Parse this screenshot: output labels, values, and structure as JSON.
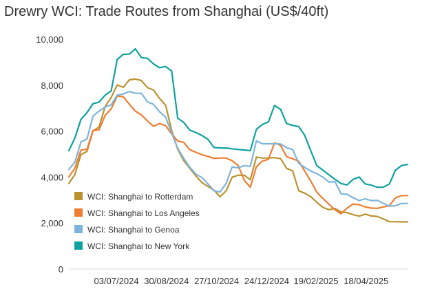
{
  "chart_data": {
    "type": "line",
    "title": "Drewry WCI: Trade Routes from Shanghai (US$/40ft)",
    "xlabel": "",
    "ylabel": "",
    "ylim": [
      0,
      10000
    ],
    "yticks": [
      "0",
      "2,000",
      "4,000",
      "6,000",
      "8,000",
      "10,000"
    ],
    "x_domain": [
      "2024-05-09",
      "2025-06-05"
    ],
    "xticks": [
      {
        "label": "03/07/2024",
        "date": "2024-07-03"
      },
      {
        "label": "30/08/2024",
        "date": "2024-08-30"
      },
      {
        "label": "27/10/2024",
        "date": "2024-10-27"
      },
      {
        "label": "24/12/2024",
        "date": "2024-12-24"
      },
      {
        "label": "19/02/2025",
        "date": "2025-02-19"
      },
      {
        "label": "18/04/2025",
        "date": "2025-04-18"
      }
    ],
    "grid": false,
    "legend_position": "bottom-left",
    "series": [
      {
        "name": "WCI: Shanghai to Rotterdam",
        "color": "#b8922d",
        "points": [
          [
            "2024-05-09",
            3724
          ],
          [
            "2024-05-16",
            4115
          ],
          [
            "2024-05-23",
            4983
          ],
          [
            "2024-05-30",
            5117
          ],
          [
            "2024-06-06",
            6013
          ],
          [
            "2024-06-13",
            6177
          ],
          [
            "2024-06-20",
            7068
          ],
          [
            "2024-06-27",
            7465
          ],
          [
            "2024-07-04",
            8008
          ],
          [
            "2024-07-11",
            7908
          ],
          [
            "2024-07-18",
            8232
          ],
          [
            "2024-07-25",
            8265
          ],
          [
            "2024-08-01",
            8205
          ],
          [
            "2024-08-08",
            7893
          ],
          [
            "2024-08-15",
            7787
          ],
          [
            "2024-08-22",
            7423
          ],
          [
            "2024-08-29",
            7125
          ],
          [
            "2024-09-05",
            6025
          ],
          [
            "2024-09-12",
            5210
          ],
          [
            "2024-09-19",
            4720
          ],
          [
            "2024-09-26",
            4380
          ],
          [
            "2024-10-03",
            4052
          ],
          [
            "2024-10-10",
            3760
          ],
          [
            "2024-10-17",
            3590
          ],
          [
            "2024-10-24",
            3430
          ],
          [
            "2024-10-31",
            3145
          ],
          [
            "2024-11-07",
            3401
          ],
          [
            "2024-11-14",
            3994
          ],
          [
            "2024-11-21",
            4080
          ],
          [
            "2024-11-28",
            4080
          ],
          [
            "2024-12-05",
            3890
          ],
          [
            "2024-12-12",
            4870
          ],
          [
            "2024-12-19",
            4830
          ],
          [
            "2024-12-26",
            4831
          ],
          [
            "2025-01-02",
            4843
          ],
          [
            "2025-01-09",
            4803
          ],
          [
            "2025-01-16",
            4380
          ],
          [
            "2025-01-23",
            4268
          ],
          [
            "2025-01-30",
            3404
          ],
          [
            "2025-02-06",
            3300
          ],
          [
            "2025-02-13",
            3150
          ],
          [
            "2025-02-20",
            2900
          ],
          [
            "2025-02-27",
            2680
          ],
          [
            "2025-03-06",
            2580
          ],
          [
            "2025-03-13",
            2632
          ],
          [
            "2025-03-20",
            2483
          ],
          [
            "2025-03-27",
            2448
          ],
          [
            "2025-04-03",
            2361
          ],
          [
            "2025-04-10",
            2298
          ],
          [
            "2025-04-17",
            2387
          ],
          [
            "2025-04-24",
            2309
          ],
          [
            "2025-05-01",
            2287
          ],
          [
            "2025-05-08",
            2174
          ],
          [
            "2025-05-15",
            2060
          ],
          [
            "2025-05-22",
            2056
          ],
          [
            "2025-05-29",
            2050
          ],
          [
            "2025-06-05",
            2050
          ]
        ]
      },
      {
        "name": "WCI: Shanghai to Los Angeles",
        "color": "#ee7d31",
        "points": [
          [
            "2024-05-09",
            4011
          ],
          [
            "2024-05-16",
            4386
          ],
          [
            "2024-05-23",
            5181
          ],
          [
            "2024-05-30",
            5209
          ],
          [
            "2024-06-06",
            6025
          ],
          [
            "2024-06-13",
            6056
          ],
          [
            "2024-06-20",
            6684
          ],
          [
            "2024-06-27",
            6973
          ],
          [
            "2024-07-04",
            7531
          ],
          [
            "2024-07-11",
            7497
          ],
          [
            "2024-07-18",
            7168
          ],
          [
            "2024-07-25",
            6867
          ],
          [
            "2024-08-01",
            6707
          ],
          [
            "2024-08-08",
            6440
          ],
          [
            "2024-08-15",
            6211
          ],
          [
            "2024-08-22",
            6329
          ],
          [
            "2024-08-29",
            6236
          ],
          [
            "2024-09-05",
            5874
          ],
          [
            "2024-09-12",
            5570
          ],
          [
            "2024-09-19",
            5510
          ],
          [
            "2024-09-26",
            5190
          ],
          [
            "2024-10-03",
            5077
          ],
          [
            "2024-10-10",
            4970
          ],
          [
            "2024-10-17",
            4900
          ],
          [
            "2024-10-24",
            4810
          ],
          [
            "2024-10-31",
            4830
          ],
          [
            "2024-11-07",
            4830
          ],
          [
            "2024-11-14",
            4713
          ],
          [
            "2024-11-21",
            4500
          ],
          [
            "2024-11-28",
            3860
          ],
          [
            "2024-12-05",
            3560
          ],
          [
            "2024-12-12",
            4453
          ],
          [
            "2024-12-19",
            4698
          ],
          [
            "2024-12-26",
            4770
          ],
          [
            "2025-01-02",
            5487
          ],
          [
            "2025-01-09",
            5379
          ],
          [
            "2025-01-16",
            4886
          ],
          [
            "2025-01-23",
            4800
          ],
          [
            "2025-01-30",
            4689
          ],
          [
            "2025-02-06",
            4264
          ],
          [
            "2025-02-13",
            3825
          ],
          [
            "2025-02-20",
            3340
          ],
          [
            "2025-02-27",
            3072
          ],
          [
            "2025-03-06",
            2821
          ],
          [
            "2025-03-13",
            2578
          ],
          [
            "2025-03-20",
            2400
          ],
          [
            "2025-03-27",
            2650
          ],
          [
            "2025-04-03",
            2827
          ],
          [
            "2025-04-10",
            2800
          ],
          [
            "2025-04-17",
            2700
          ],
          [
            "2025-04-24",
            2650
          ],
          [
            "2025-05-01",
            2640
          ],
          [
            "2025-05-08",
            2700
          ],
          [
            "2025-05-15",
            2750
          ],
          [
            "2025-05-22",
            3100
          ],
          [
            "2025-05-29",
            3196
          ],
          [
            "2025-06-05",
            3196
          ]
        ]
      },
      {
        "name": "WCI: Shanghai to Genoa",
        "color": "#7db4dc",
        "points": [
          [
            "2024-05-09",
            4333
          ],
          [
            "2024-05-16",
            4650
          ],
          [
            "2024-05-23",
            5530
          ],
          [
            "2024-05-30",
            5658
          ],
          [
            "2024-06-06",
            6658
          ],
          [
            "2024-06-13",
            6872
          ],
          [
            "2024-06-20",
            7047
          ],
          [
            "2024-06-27",
            7147
          ],
          [
            "2024-07-04",
            7572
          ],
          [
            "2024-07-11",
            7612
          ],
          [
            "2024-07-18",
            7728
          ],
          [
            "2024-07-25",
            7645
          ],
          [
            "2024-08-01",
            7646
          ],
          [
            "2024-08-08",
            7273
          ],
          [
            "2024-08-15",
            7166
          ],
          [
            "2024-08-22",
            6837
          ],
          [
            "2024-08-29",
            6608
          ],
          [
            "2024-09-05",
            5916
          ],
          [
            "2024-09-12",
            5260
          ],
          [
            "2024-09-19",
            4810
          ],
          [
            "2024-09-26",
            4432
          ],
          [
            "2024-10-03",
            4128
          ],
          [
            "2024-10-10",
            3980
          ],
          [
            "2024-10-17",
            3700
          ],
          [
            "2024-10-24",
            3401
          ],
          [
            "2024-10-31",
            3350
          ],
          [
            "2024-11-07",
            3720
          ],
          [
            "2024-11-14",
            4440
          ],
          [
            "2024-11-21",
            4400
          ],
          [
            "2024-11-28",
            4500
          ],
          [
            "2024-12-05",
            4460
          ],
          [
            "2024-12-12",
            5575
          ],
          [
            "2024-12-19",
            5450
          ],
          [
            "2024-12-26",
            5450
          ],
          [
            "2025-01-02",
            5450
          ],
          [
            "2025-01-09",
            5440
          ],
          [
            "2025-01-16",
            5282
          ],
          [
            "2025-01-23",
            5200
          ],
          [
            "2025-01-30",
            4600
          ],
          [
            "2025-02-06",
            4420
          ],
          [
            "2025-02-13",
            4260
          ],
          [
            "2025-02-20",
            4150
          ],
          [
            "2025-02-27",
            3995
          ],
          [
            "2025-03-06",
            3780
          ],
          [
            "2025-03-13",
            3800
          ],
          [
            "2025-03-20",
            3270
          ],
          [
            "2025-03-27",
            3250
          ],
          [
            "2025-04-03",
            3100
          ],
          [
            "2025-04-10",
            2980
          ],
          [
            "2025-04-17",
            3054
          ],
          [
            "2025-04-24",
            2980
          ],
          [
            "2025-05-01",
            2989
          ],
          [
            "2025-05-08",
            2850
          ],
          [
            "2025-05-15",
            2740
          ],
          [
            "2025-05-22",
            2750
          ],
          [
            "2025-05-29",
            2850
          ],
          [
            "2025-06-05",
            2850
          ]
        ]
      },
      {
        "name": "WCI: Shanghai to New York",
        "color": "#0ea19f",
        "points": [
          [
            "2024-05-09",
            5148
          ],
          [
            "2024-05-16",
            5703
          ],
          [
            "2024-05-23",
            6510
          ],
          [
            "2024-05-30",
            6808
          ],
          [
            "2024-06-06",
            7191
          ],
          [
            "2024-06-13",
            7264
          ],
          [
            "2024-06-20",
            7563
          ],
          [
            "2024-06-27",
            7751
          ],
          [
            "2024-07-04",
            9123
          ],
          [
            "2024-07-11",
            9341
          ],
          [
            "2024-07-18",
            9349
          ],
          [
            "2024-07-25",
            9581
          ],
          [
            "2024-08-01",
            9201
          ],
          [
            "2024-08-08",
            9167
          ],
          [
            "2024-08-15",
            8922
          ],
          [
            "2024-08-22",
            8759
          ],
          [
            "2024-08-29",
            8810
          ],
          [
            "2024-09-05",
            8612
          ],
          [
            "2024-09-12",
            6560
          ],
          [
            "2024-09-19",
            6380
          ],
          [
            "2024-09-26",
            6043
          ],
          [
            "2024-10-03",
            5940
          ],
          [
            "2024-10-10",
            5810
          ],
          [
            "2024-10-17",
            5640
          ],
          [
            "2024-10-24",
            5285
          ],
          [
            "2024-10-31",
            5270
          ],
          [
            "2024-11-07",
            5266
          ],
          [
            "2024-11-14",
            5230
          ],
          [
            "2024-11-21",
            5200
          ],
          [
            "2024-11-28",
            5180
          ],
          [
            "2024-12-05",
            5150
          ],
          [
            "2024-12-12",
            6080
          ],
          [
            "2024-12-19",
            6290
          ],
          [
            "2024-12-26",
            6400
          ],
          [
            "2025-01-02",
            7117
          ],
          [
            "2025-01-09",
            6950
          ],
          [
            "2025-01-16",
            6329
          ],
          [
            "2025-01-23",
            6250
          ],
          [
            "2025-01-30",
            6200
          ],
          [
            "2025-02-06",
            5815
          ],
          [
            "2025-02-13",
            5148
          ],
          [
            "2025-02-20",
            4500
          ],
          [
            "2025-02-27",
            4300
          ],
          [
            "2025-03-06",
            4100
          ],
          [
            "2025-03-13",
            3900
          ],
          [
            "2025-03-20",
            3720
          ],
          [
            "2025-03-27",
            3660
          ],
          [
            "2025-04-03",
            3900
          ],
          [
            "2025-04-10",
            4000
          ],
          [
            "2025-04-17",
            3700
          ],
          [
            "2025-04-24",
            3650
          ],
          [
            "2025-05-01",
            3556
          ],
          [
            "2025-05-08",
            3560
          ],
          [
            "2025-05-15",
            3700
          ],
          [
            "2025-05-22",
            4300
          ],
          [
            "2025-05-29",
            4500
          ],
          [
            "2025-06-05",
            4550
          ]
        ]
      }
    ]
  }
}
